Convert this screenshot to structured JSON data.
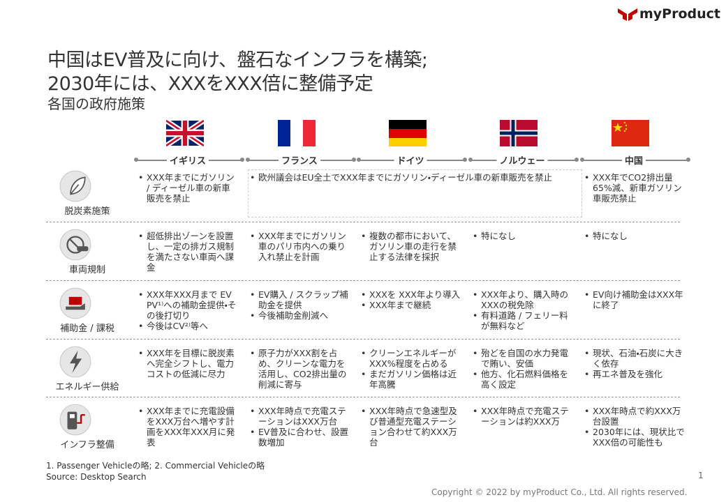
{
  "header": {
    "logo": "myProduct",
    "title_lines": [
      "中国はEV普及に向け、盤石なインフラを構築;",
      "2030年には、XXXをXXX倍に整備予定"
    ],
    "subtitle": "各国の政府施策"
  },
  "table": {
    "columns": [
      "イギリス",
      "フランス",
      "ドイツ",
      "ノルウェー",
      "中国"
    ],
    "rows": [
      {
        "label": "脱炭素施策",
        "cells": [
          [
            "XXX年までにガソリン / ディーゼル車の新車販売を禁止"
          ],
          [
            "欧州議会はEU全土でXXX年までにガソリン・ディーゼル車の新車販売を禁止"
          ],
          [
            "XXX年でCO2排出量65%減、新車ガソリン車販売禁止"
          ]
        ]
      },
      {
        "label": "車両規制",
        "cells": [
          [
            "超低排出ゾーンを設置し、一定の排ガス規制を満たさない車両へ課金"
          ],
          [
            "XXX年までにガソリン車のパリ市内への乗り入れ禁止を計画"
          ],
          [
            "複数の都市において、ガソリン車の走行を禁止する法律を採択"
          ],
          [
            "特になし"
          ],
          [
            "特になし"
          ]
        ]
      },
      {
        "label": "補助金 / 課税",
        "cells": [
          [
            "XXX年XXX月まで EV PV¹⁾への補助金提供・その後打切り",
            "今後はCV²⁾等へ"
          ],
          [
            "EV購入 / スクラップ補助金を提供",
            "今後補助金削減へ"
          ],
          [
            "XXXを XXX年より導入",
            "XXX年まで継続"
          ],
          [
            "XXX年より、購入時のXXXの税免除",
            "有料道路 / フェリー料が無料など"
          ],
          [
            "EV向け補助金はXXX年に終了"
          ]
        ]
      },
      {
        "label": "エネルギー供給",
        "cells": [
          [
            "XXX年を目標に脱炭素へ完全シフトし、電力コストの低減に尽力"
          ],
          [
            "原子力がXXX割を占め、クリーンな電力を活用し、CO2排出量の削減に寄与"
          ],
          [
            "クリーンエネルギーがXXX%程度を占める",
            "まだガソリン価格は近年高騰"
          ],
          [
            "殆どを自国の水力発電で賄い、安価",
            "他方、化石燃料価格を高く設定"
          ],
          [
            "現状、石油・石炭に大きく依存",
            "再エネ普及を強化"
          ]
        ]
      },
      {
        "label": "インフラ整備",
        "cells": [
          [
            "XXX年までに充電設備をXXX万台へ増やす計画をXXX年XXX月に発表"
          ],
          [
            "XXX年時点で充電ステーションはXXX万台",
            "EV普及に合わせ、設置数増加"
          ],
          [
            "XXX年時点で急速型及び普通型充電ステーション合わせて約XXX万台"
          ],
          [
            "XXX年時点で充電ステーションは約XXX万"
          ],
          [
            "XXX年時点で約XXX万台設置",
            "2030年には、現状比でXXX倍の可能性も"
          ]
        ]
      }
    ]
  },
  "footer": {
    "notes": [
      "1. Passenger Vehicleの略; 2. Commercial Vehicleの略",
      "Source: Desktop Search"
    ],
    "page": "1",
    "copyright": "Copyright © 2022 by myProduct Co., Ltd.  All rights reserved."
  }
}
